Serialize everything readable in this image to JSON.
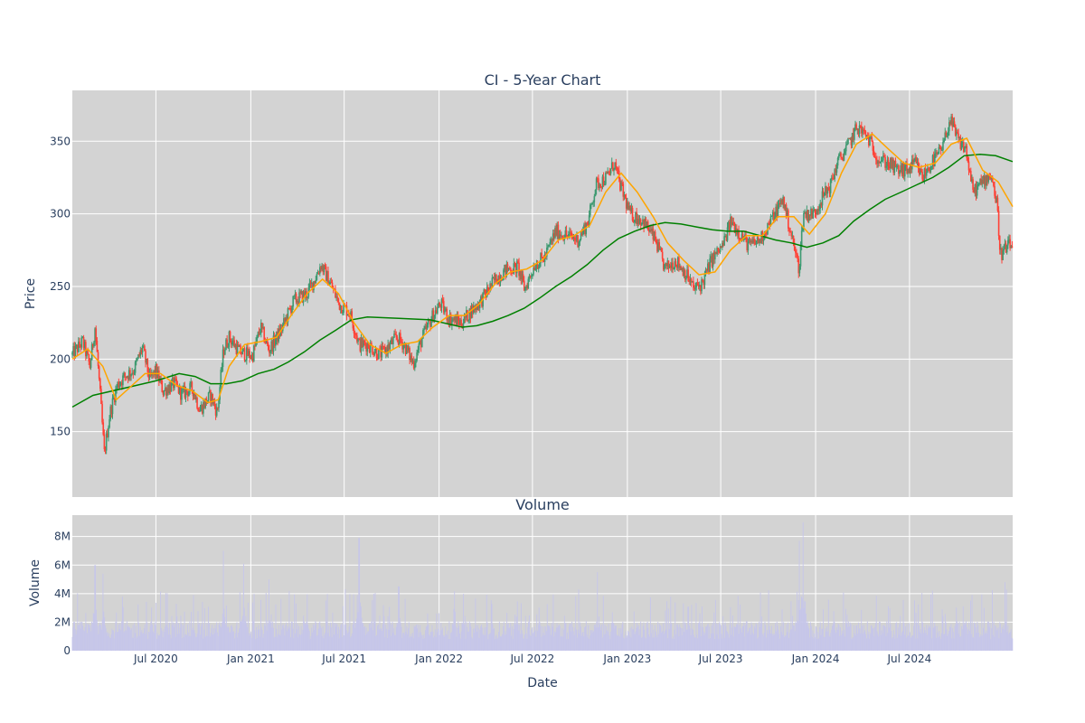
{
  "chart_data": [
    {
      "type": "candlestick",
      "title": "CI - 5-Year Chart",
      "ylabel": "Price",
      "xlabel": "",
      "xlim": [
        "2020-01-21",
        "2025-01-17"
      ],
      "ylim": [
        105,
        385
      ],
      "yticks": [
        150,
        200,
        250,
        300,
        350
      ],
      "grid": true,
      "legend": "none",
      "colors": {
        "up": "#3d9970",
        "down": "#ff4136",
        "ma_short": "#ffa500",
        "ma_long": "#008000",
        "plot_bg": "#d3d3d3"
      },
      "close_path": [
        [
          "2020-01-21",
          203
        ],
        [
          "2020-02-10",
          212
        ],
        [
          "2020-02-24",
          195
        ],
        [
          "2020-03-05",
          222
        ],
        [
          "2020-03-12",
          190
        ],
        [
          "2020-03-23",
          135
        ],
        [
          "2020-04-03",
          163
        ],
        [
          "2020-04-17",
          182
        ],
        [
          "2020-05-01",
          188
        ],
        [
          "2020-05-20",
          193
        ],
        [
          "2020-06-05",
          208
        ],
        [
          "2020-06-19",
          186
        ],
        [
          "2020-07-01",
          192
        ],
        [
          "2020-07-15",
          178
        ],
        [
          "2020-08-05",
          183
        ],
        [
          "2020-08-20",
          176
        ],
        [
          "2020-09-10",
          180
        ],
        [
          "2020-09-24",
          165
        ],
        [
          "2020-10-15",
          175
        ],
        [
          "2020-10-28",
          163
        ],
        [
          "2020-11-09",
          206
        ],
        [
          "2020-11-20",
          215
        ],
        [
          "2020-12-10",
          205
        ],
        [
          "2021-01-04",
          202
        ],
        [
          "2021-01-20",
          222
        ],
        [
          "2021-02-05",
          206
        ],
        [
          "2021-03-01",
          220
        ],
        [
          "2021-03-25",
          240
        ],
        [
          "2021-04-20",
          245
        ],
        [
          "2021-05-05",
          255
        ],
        [
          "2021-05-17",
          265
        ],
        [
          "2021-06-07",
          250
        ],
        [
          "2021-06-21",
          238
        ],
        [
          "2021-07-12",
          232
        ],
        [
          "2021-07-30",
          210
        ],
        [
          "2021-08-16",
          210
        ],
        [
          "2021-09-08",
          203
        ],
        [
          "2021-09-24",
          208
        ],
        [
          "2021-10-11",
          215
        ],
        [
          "2021-10-25",
          210
        ],
        [
          "2021-11-12",
          197
        ],
        [
          "2021-11-30",
          215
        ],
        [
          "2021-12-20",
          230
        ],
        [
          "2022-01-04",
          238
        ],
        [
          "2022-01-20",
          228
        ],
        [
          "2022-02-14",
          225
        ],
        [
          "2022-03-01",
          232
        ],
        [
          "2022-03-23",
          240
        ],
        [
          "2022-04-20",
          255
        ],
        [
          "2022-05-13",
          262
        ],
        [
          "2022-06-03",
          263
        ],
        [
          "2022-06-16",
          248
        ],
        [
          "2022-07-05",
          265
        ],
        [
          "2022-07-25",
          270
        ],
        [
          "2022-08-15",
          288
        ],
        [
          "2022-09-06",
          285
        ],
        [
          "2022-09-28",
          282
        ],
        [
          "2022-10-17",
          295
        ],
        [
          "2022-11-01",
          320
        ],
        [
          "2022-11-22",
          325
        ],
        [
          "2022-12-07",
          335
        ],
        [
          "2022-12-16",
          322
        ],
        [
          "2023-01-06",
          300
        ],
        [
          "2023-02-01",
          295
        ],
        [
          "2023-02-24",
          282
        ],
        [
          "2023-03-15",
          262
        ],
        [
          "2023-04-05",
          268
        ],
        [
          "2023-04-26",
          258
        ],
        [
          "2023-05-10",
          248
        ],
        [
          "2023-05-26",
          252
        ],
        [
          "2023-06-13",
          268
        ],
        [
          "2023-07-05",
          278
        ],
        [
          "2023-07-21",
          295
        ],
        [
          "2023-08-10",
          285
        ],
        [
          "2023-08-25",
          278
        ],
        [
          "2023-09-15",
          282
        ],
        [
          "2023-10-06",
          295
        ],
        [
          "2023-10-30",
          310
        ],
        [
          "2023-11-15",
          285
        ],
        [
          "2023-11-30",
          262
        ],
        [
          "2023-12-08",
          300
        ],
        [
          "2023-12-28",
          300
        ],
        [
          "2024-01-12",
          310
        ],
        [
          "2024-01-30",
          320
        ],
        [
          "2024-02-12",
          335
        ],
        [
          "2024-03-01",
          345
        ],
        [
          "2024-03-22",
          360
        ],
        [
          "2024-04-12",
          352
        ],
        [
          "2024-05-01",
          338
        ],
        [
          "2024-05-20",
          335
        ],
        [
          "2024-06-07",
          330
        ],
        [
          "2024-06-28",
          330
        ],
        [
          "2024-07-12",
          335
        ],
        [
          "2024-07-26",
          325
        ],
        [
          "2024-08-13",
          335
        ],
        [
          "2024-09-03",
          345
        ],
        [
          "2024-09-17",
          365
        ],
        [
          "2024-10-04",
          350
        ],
        [
          "2024-10-18",
          345
        ],
        [
          "2024-11-01",
          315
        ],
        [
          "2024-11-15",
          320
        ],
        [
          "2024-12-06",
          328
        ],
        [
          "2024-12-18",
          305
        ],
        [
          "2024-12-24",
          272
        ],
        [
          "2025-01-10",
          278
        ],
        [
          "2025-01-17",
          277
        ]
      ],
      "ma_short_path": [
        [
          "2020-01-21",
          200
        ],
        [
          "2020-02-20",
          207
        ],
        [
          "2020-03-20",
          195
        ],
        [
          "2020-04-15",
          172
        ],
        [
          "2020-05-10",
          180
        ],
        [
          "2020-06-10",
          190
        ],
        [
          "2020-07-10",
          190
        ],
        [
          "2020-08-10",
          182
        ],
        [
          "2020-09-10",
          178
        ],
        [
          "2020-10-10",
          170
        ],
        [
          "2020-10-30",
          172
        ],
        [
          "2020-11-20",
          195
        ],
        [
          "2020-12-20",
          210
        ],
        [
          "2021-01-20",
          212
        ],
        [
          "2021-02-20",
          215
        ],
        [
          "2021-03-20",
          230
        ],
        [
          "2021-04-20",
          245
        ],
        [
          "2021-05-20",
          255
        ],
        [
          "2021-06-20",
          245
        ],
        [
          "2021-07-20",
          225
        ],
        [
          "2021-08-20",
          210
        ],
        [
          "2021-09-20",
          204
        ],
        [
          "2021-10-20",
          210
        ],
        [
          "2021-11-20",
          212
        ],
        [
          "2021-12-20",
          222
        ],
        [
          "2022-01-20",
          230
        ],
        [
          "2022-02-20",
          230
        ],
        [
          "2022-03-20",
          238
        ],
        [
          "2022-04-20",
          252
        ],
        [
          "2022-05-20",
          260
        ],
        [
          "2022-06-20",
          262
        ],
        [
          "2022-07-20",
          268
        ],
        [
          "2022-08-20",
          282
        ],
        [
          "2022-09-20",
          285
        ],
        [
          "2022-10-20",
          292
        ],
        [
          "2022-11-20",
          315
        ],
        [
          "2022-12-20",
          328
        ],
        [
          "2023-01-20",
          315
        ],
        [
          "2023-02-20",
          298
        ],
        [
          "2023-03-20",
          280
        ],
        [
          "2023-04-20",
          268
        ],
        [
          "2023-05-20",
          258
        ],
        [
          "2023-06-20",
          260
        ],
        [
          "2023-07-20",
          275
        ],
        [
          "2023-08-20",
          285
        ],
        [
          "2023-09-20",
          285
        ],
        [
          "2023-10-20",
          298
        ],
        [
          "2023-11-20",
          298
        ],
        [
          "2023-12-20",
          286
        ],
        [
          "2024-01-20",
          300
        ],
        [
          "2024-02-20",
          328
        ],
        [
          "2024-03-20",
          348
        ],
        [
          "2024-04-20",
          355
        ],
        [
          "2024-05-20",
          345
        ],
        [
          "2024-06-20",
          335
        ],
        [
          "2024-07-20",
          332
        ],
        [
          "2024-08-20",
          335
        ],
        [
          "2024-09-20",
          348
        ],
        [
          "2024-10-20",
          352
        ],
        [
          "2024-11-20",
          330
        ],
        [
          "2024-12-20",
          322
        ],
        [
          "2025-01-17",
          305
        ]
      ],
      "ma_long_path": [
        [
          "2020-01-21",
          167
        ],
        [
          "2020-03-01",
          175
        ],
        [
          "2020-05-01",
          180
        ],
        [
          "2020-07-01",
          185
        ],
        [
          "2020-08-15",
          190
        ],
        [
          "2020-09-15",
          188
        ],
        [
          "2020-10-15",
          183
        ],
        [
          "2020-11-15",
          183
        ],
        [
          "2020-12-15",
          185
        ],
        [
          "2021-01-15",
          190
        ],
        [
          "2021-02-15",
          193
        ],
        [
          "2021-03-15",
          198
        ],
        [
          "2021-04-15",
          205
        ],
        [
          "2021-05-15",
          213
        ],
        [
          "2021-06-15",
          220
        ],
        [
          "2021-07-15",
          227
        ],
        [
          "2021-08-15",
          229
        ],
        [
          "2021-10-15",
          228
        ],
        [
          "2021-12-15",
          227
        ],
        [
          "2022-02-15",
          222
        ],
        [
          "2022-03-15",
          223
        ],
        [
          "2022-04-15",
          226
        ],
        [
          "2022-05-15",
          230
        ],
        [
          "2022-06-15",
          235
        ],
        [
          "2022-07-15",
          242
        ],
        [
          "2022-08-15",
          250
        ],
        [
          "2022-09-15",
          257
        ],
        [
          "2022-10-15",
          265
        ],
        [
          "2022-11-15",
          275
        ],
        [
          "2022-12-15",
          283
        ],
        [
          "2023-01-15",
          288
        ],
        [
          "2023-02-15",
          292
        ],
        [
          "2023-03-15",
          294
        ],
        [
          "2023-04-15",
          293
        ],
        [
          "2023-05-15",
          291
        ],
        [
          "2023-06-15",
          289
        ],
        [
          "2023-07-15",
          288
        ],
        [
          "2023-08-15",
          288
        ],
        [
          "2023-09-15",
          285
        ],
        [
          "2023-10-15",
          282
        ],
        [
          "2023-11-15",
          280
        ],
        [
          "2023-12-15",
          277
        ],
        [
          "2024-01-15",
          280
        ],
        [
          "2024-02-15",
          285
        ],
        [
          "2024-03-15",
          295
        ],
        [
          "2024-04-15",
          303
        ],
        [
          "2024-05-15",
          310
        ],
        [
          "2024-06-15",
          315
        ],
        [
          "2024-07-15",
          320
        ],
        [
          "2024-08-15",
          325
        ],
        [
          "2024-09-15",
          332
        ],
        [
          "2024-10-15",
          340
        ],
        [
          "2024-11-15",
          341
        ],
        [
          "2024-12-15",
          340
        ],
        [
          "2025-01-17",
          336
        ]
      ]
    },
    {
      "type": "bar",
      "title": "Volume",
      "ylabel": "Volume",
      "xlabel": "Date",
      "xlim": [
        "2020-01-21",
        "2025-01-17"
      ],
      "ylim": [
        0,
        9500000
      ],
      "yticks": [
        {
          "value": 0,
          "label": "0"
        },
        {
          "value": 2000000,
          "label": "2M"
        },
        {
          "value": 4000000,
          "label": "4M"
        },
        {
          "value": 6000000,
          "label": "6M"
        },
        {
          "value": 8000000,
          "label": "8M"
        }
      ],
      "xticks": [
        {
          "date": "2020-07-01",
          "label": "Jul 2020"
        },
        {
          "date": "2021-01-01",
          "label": "Jan 2021"
        },
        {
          "date": "2021-07-01",
          "label": "Jul 2021"
        },
        {
          "date": "2022-01-01",
          "label": "Jan 2022"
        },
        {
          "date": "2022-07-01",
          "label": "Jul 2022"
        },
        {
          "date": "2023-01-01",
          "label": "Jan 2023"
        },
        {
          "date": "2023-07-01",
          "label": "Jul 2023"
        },
        {
          "date": "2024-01-01",
          "label": "Jan 2024"
        },
        {
          "date": "2024-07-01",
          "label": "Jul 2024"
        }
      ],
      "grid": true,
      "colors": {
        "bar": "#c6c6ea",
        "plot_bg": "#d3d3d3"
      },
      "spikes": [
        [
          "2020-03-05",
          6000000
        ],
        [
          "2020-03-20",
          5400000
        ],
        [
          "2020-11-09",
          7000000
        ],
        [
          "2020-12-18",
          6100000
        ],
        [
          "2021-02-05",
          5000000
        ],
        [
          "2021-07-30",
          7900000
        ],
        [
          "2021-10-15",
          4500000
        ],
        [
          "2022-11-04",
          5500000
        ],
        [
          "2023-11-30",
          7700000
        ],
        [
          "2023-12-08",
          9000000
        ],
        [
          "2025-01-02",
          4800000
        ]
      ],
      "baseline": 1800000
    }
  ]
}
